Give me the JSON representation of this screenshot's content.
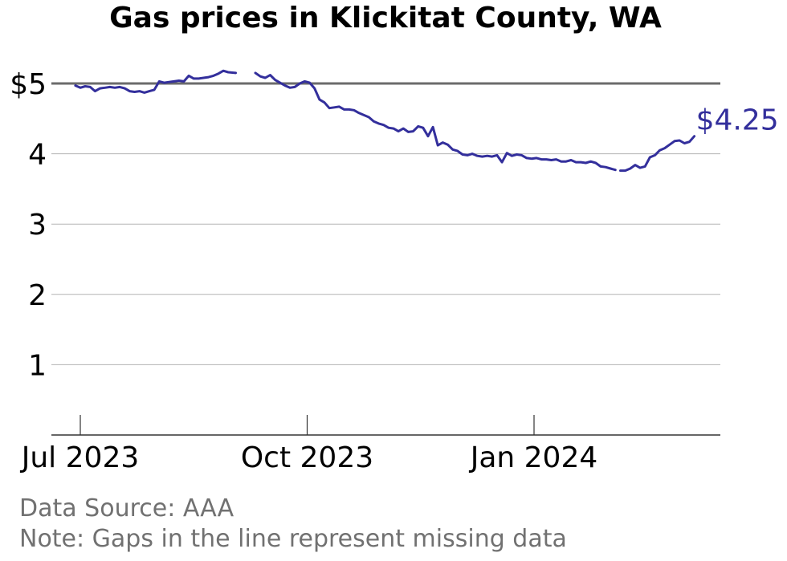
{
  "chart_data": {
    "type": "line",
    "title": "Gas prices in Klickitat County, WA",
    "xlabel": "",
    "ylabel": "",
    "ylim": [
      0,
      5.4
    ],
    "y_ticks": [
      {
        "value": 1,
        "label": "1"
      },
      {
        "value": 2,
        "label": "2"
      },
      {
        "value": 3,
        "label": "3"
      },
      {
        "value": 4,
        "label": "4"
      },
      {
        "value": 5,
        "label": "$5"
      }
    ],
    "x_ticks": [
      {
        "date": "2023-07-01",
        "label": "Jul 2023"
      },
      {
        "date": "2023-10-01",
        "label": "Oct 2023"
      },
      {
        "date": "2024-01-01",
        "label": "Jan 2024"
      }
    ],
    "reference_line": {
      "value": 5
    },
    "series": [
      {
        "color": "#332f9c",
        "segments": [
          [
            [
              "2023-06-29",
              4.97
            ],
            [
              "2023-07-01",
              4.94
            ],
            [
              "2023-07-03",
              4.96
            ],
            [
              "2023-07-05",
              4.95
            ],
            [
              "2023-07-07",
              4.89
            ],
            [
              "2023-07-09",
              4.93
            ],
            [
              "2023-07-11",
              4.94
            ],
            [
              "2023-07-13",
              4.95
            ],
            [
              "2023-07-15",
              4.94
            ],
            [
              "2023-07-17",
              4.95
            ],
            [
              "2023-07-19",
              4.93
            ],
            [
              "2023-07-21",
              4.89
            ],
            [
              "2023-07-23",
              4.88
            ],
            [
              "2023-07-25",
              4.89
            ],
            [
              "2023-07-27",
              4.87
            ],
            [
              "2023-07-29",
              4.89
            ],
            [
              "2023-07-31",
              4.91
            ],
            [
              "2023-08-02",
              5.03
            ],
            [
              "2023-08-04",
              5.01
            ],
            [
              "2023-08-06",
              5.02
            ],
            [
              "2023-08-08",
              5.03
            ],
            [
              "2023-08-10",
              5.04
            ],
            [
              "2023-08-12",
              5.03
            ],
            [
              "2023-08-14",
              5.11
            ],
            [
              "2023-08-16",
              5.07
            ],
            [
              "2023-08-18",
              5.07
            ],
            [
              "2023-08-20",
              5.08
            ],
            [
              "2023-08-22",
              5.09
            ],
            [
              "2023-08-24",
              5.11
            ],
            [
              "2023-08-26",
              5.14
            ],
            [
              "2023-08-28",
              5.18
            ],
            [
              "2023-08-30",
              5.16
            ],
            [
              "2023-09-02",
              5.15
            ]
          ],
          [
            [
              "2023-09-10",
              5.15
            ],
            [
              "2023-09-12",
              5.1
            ],
            [
              "2023-09-14",
              5.08
            ],
            [
              "2023-09-16",
              5.12
            ],
            [
              "2023-09-18",
              5.05
            ],
            [
              "2023-09-20",
              5.01
            ],
            [
              "2023-09-22",
              4.97
            ],
            [
              "2023-09-24",
              4.94
            ],
            [
              "2023-09-26",
              4.95
            ],
            [
              "2023-09-28",
              5.0
            ],
            [
              "2023-09-30",
              5.03
            ],
            [
              "2023-10-02",
              5.01
            ],
            [
              "2023-10-04",
              4.93
            ],
            [
              "2023-10-06",
              4.77
            ],
            [
              "2023-10-08",
              4.73
            ],
            [
              "2023-10-10",
              4.65
            ],
            [
              "2023-10-12",
              4.66
            ],
            [
              "2023-10-14",
              4.67
            ],
            [
              "2023-10-16",
              4.63
            ],
            [
              "2023-10-18",
              4.63
            ],
            [
              "2023-10-20",
              4.62
            ],
            [
              "2023-10-22",
              4.58
            ],
            [
              "2023-10-24",
              4.55
            ],
            [
              "2023-10-26",
              4.52
            ],
            [
              "2023-10-28",
              4.46
            ],
            [
              "2023-10-30",
              4.43
            ],
            [
              "2023-11-01",
              4.41
            ],
            [
              "2023-11-03",
              4.37
            ],
            [
              "2023-11-05",
              4.36
            ],
            [
              "2023-11-07",
              4.32
            ],
            [
              "2023-11-09",
              4.36
            ],
            [
              "2023-11-11",
              4.31
            ],
            [
              "2023-11-13",
              4.32
            ],
            [
              "2023-11-15",
              4.39
            ],
            [
              "2023-11-17",
              4.37
            ],
            [
              "2023-11-19",
              4.25
            ],
            [
              "2023-11-21",
              4.38
            ],
            [
              "2023-11-23",
              4.12
            ],
            [
              "2023-11-25",
              4.16
            ],
            [
              "2023-11-27",
              4.13
            ],
            [
              "2023-11-29",
              4.06
            ],
            [
              "2023-12-01",
              4.04
            ],
            [
              "2023-12-03",
              3.99
            ],
            [
              "2023-12-05",
              3.98
            ],
            [
              "2023-12-07",
              4.0
            ],
            [
              "2023-12-09",
              3.97
            ],
            [
              "2023-12-11",
              3.96
            ],
            [
              "2023-12-13",
              3.97
            ],
            [
              "2023-12-15",
              3.96
            ],
            [
              "2023-12-17",
              3.98
            ],
            [
              "2023-12-19",
              3.88
            ],
            [
              "2023-12-21",
              4.01
            ],
            [
              "2023-12-23",
              3.97
            ],
            [
              "2023-12-25",
              3.99
            ],
            [
              "2023-12-27",
              3.98
            ],
            [
              "2023-12-29",
              3.94
            ],
            [
              "2023-12-31",
              3.93
            ],
            [
              "2024-01-02",
              3.94
            ],
            [
              "2024-01-04",
              3.92
            ],
            [
              "2024-01-06",
              3.92
            ],
            [
              "2024-01-08",
              3.91
            ],
            [
              "2024-01-10",
              3.92
            ],
            [
              "2024-01-12",
              3.89
            ],
            [
              "2024-01-14",
              3.89
            ],
            [
              "2024-01-16",
              3.91
            ],
            [
              "2024-01-18",
              3.88
            ],
            [
              "2024-01-20",
              3.88
            ],
            [
              "2024-01-22",
              3.87
            ],
            [
              "2024-01-24",
              3.89
            ],
            [
              "2024-01-26",
              3.87
            ],
            [
              "2024-01-28",
              3.82
            ],
            [
              "2024-01-30",
              3.81
            ],
            [
              "2024-02-01",
              3.79
            ],
            [
              "2024-02-03",
              3.77
            ]
          ],
          [
            [
              "2024-02-05",
              3.76
            ],
            [
              "2024-02-07",
              3.76
            ],
            [
              "2024-02-09",
              3.79
            ],
            [
              "2024-02-11",
              3.84
            ],
            [
              "2024-02-13",
              3.8
            ],
            [
              "2024-02-15",
              3.82
            ],
            [
              "2024-02-17",
              3.95
            ],
            [
              "2024-02-19",
              3.98
            ],
            [
              "2024-02-21",
              4.05
            ],
            [
              "2024-02-23",
              4.08
            ],
            [
              "2024-02-25",
              4.13
            ],
            [
              "2024-02-27",
              4.18
            ],
            [
              "2024-02-29",
              4.19
            ],
            [
              "2024-03-02",
              4.15
            ],
            [
              "2024-03-04",
              4.17
            ],
            [
              "2024-03-06",
              4.25
            ]
          ]
        ]
      }
    ],
    "end_label": "$4.25"
  },
  "footer": {
    "source": "Data Source: AAA",
    "note": "Note: Gaps in the line represent missing data"
  }
}
